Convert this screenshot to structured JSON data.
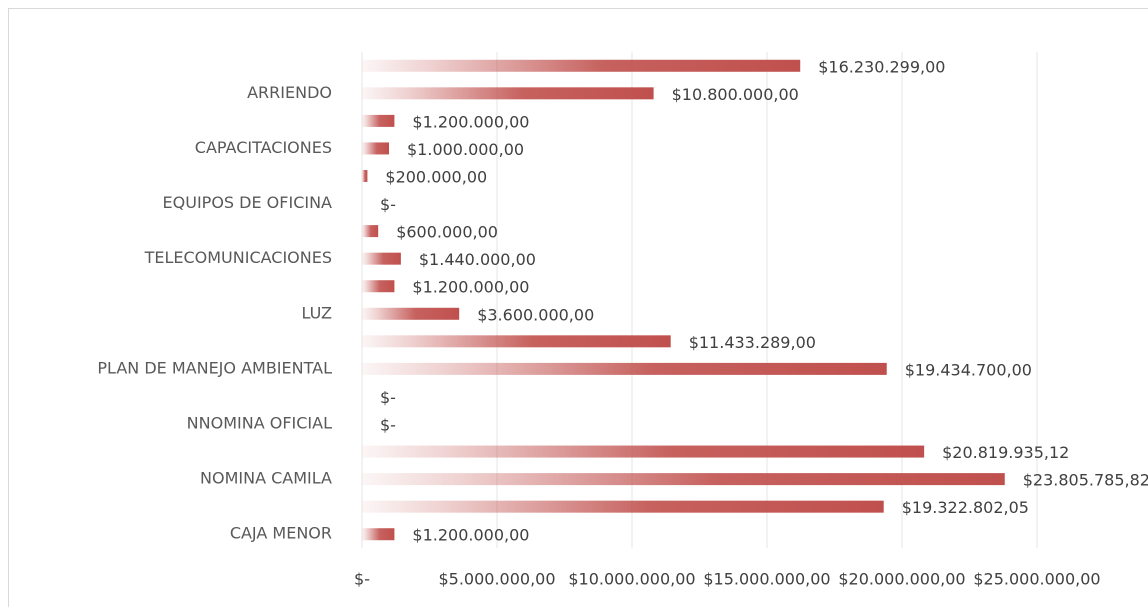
{
  "chart_data": {
    "type": "bar",
    "orientation": "horizontal",
    "categories": [
      "CAJA MENOR",
      null,
      "NOMINA CAMILA",
      null,
      "NNOMINA OFICIAL",
      null,
      "PLAN DE MANEJO AMBIENTAL",
      null,
      "LUZ",
      null,
      "TELECOMUNICACIONES",
      null,
      "EQUIPOS DE OFICINA",
      null,
      "CAPACITACIONES",
      null,
      "ARRIENDO",
      null
    ],
    "values": [
      1200000,
      19322802.05,
      23805785.82,
      20819935.12,
      0,
      0,
      19434700,
      11433289,
      3600000,
      1200000,
      1440000,
      600000,
      0,
      200000,
      1000000,
      1200000,
      10800000,
      16230299
    ],
    "value_labels": [
      "$1.200.000,00",
      "$19.322.802,05",
      "$23.805.785,82",
      "$20.819.935,12",
      "$-",
      "$-",
      "$19.434.700,00",
      "$11.433.289,00",
      "$3.600.000,00",
      "$1.200.000,00",
      "$1.440.000,00",
      "$600.000,00",
      "$-",
      "$200.000,00",
      "$1.000.000,00",
      "$1.200.000,00",
      "$10.800.000,00",
      "$16.230.299,00"
    ],
    "color": "#c0504d",
    "xlim": [
      0,
      25000000
    ],
    "xticks": [
      {
        "value": 0,
        "label": "$-"
      },
      {
        "value": 5000000,
        "label": "$5.000.000,00"
      },
      {
        "value": 10000000,
        "label": "$10.000.000,00"
      },
      {
        "value": 15000000,
        "label": "$15.000.000,00"
      },
      {
        "value": 20000000,
        "label": "$20.000.000,00"
      },
      {
        "value": 25000000,
        "label": "$25.000.000,00"
      }
    ],
    "grid": true
  }
}
